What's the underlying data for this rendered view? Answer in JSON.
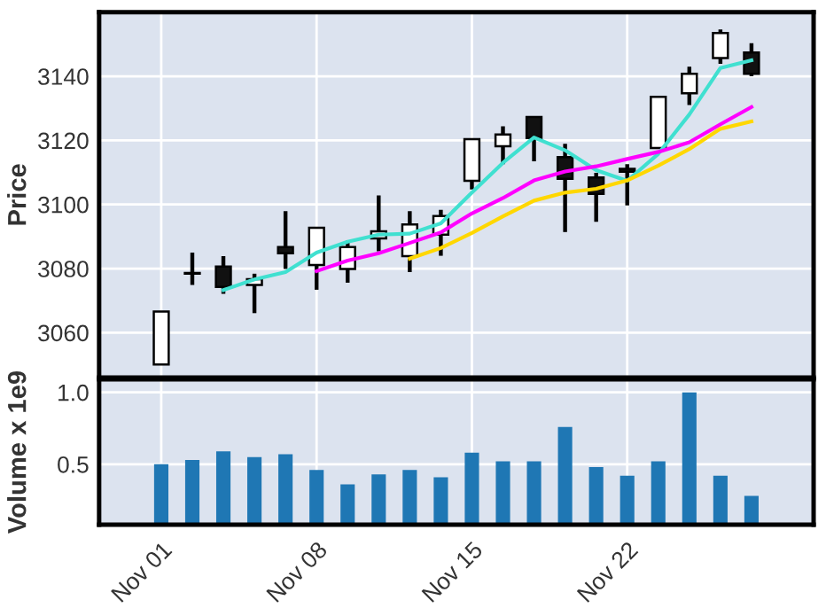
{
  "chart_data": [
    {
      "type": "candlestick",
      "ylabel": "Price",
      "categories": [
        null,
        null,
        null,
        null,
        null,
        null,
        null,
        null,
        null,
        null,
        null,
        null,
        null,
        null,
        null,
        null,
        null,
        null,
        null,
        null
      ],
      "ohlc": [
        [
          3050.1,
          3066.6,
          3050.1,
          3066.6
        ],
        [
          3078.6,
          3085.0,
          3074.9,
          3078.4
        ],
        [
          3080.6,
          3083.9,
          3072.1,
          3074.3
        ],
        [
          3074.9,
          3078.4,
          3066.1,
          3076.7
        ],
        [
          3086.7,
          3097.9,
          3079.9,
          3084.8
        ],
        [
          3081.1,
          3092.7,
          3073.4,
          3092.7
        ],
        [
          3079.9,
          3088.7,
          3075.6,
          3086.7
        ],
        [
          3089.4,
          3102.8,
          3085.4,
          3091.6
        ],
        [
          3083.9,
          3097.9,
          3078.9,
          3093.8
        ],
        [
          3090.6,
          3098.3,
          3084.0,
          3096.4
        ],
        [
          3107.4,
          3120.4,
          3104.7,
          3120.4
        ],
        [
          3118.2,
          3124.4,
          3112.6,
          3121.8
        ],
        [
          3127.3,
          3127.3,
          3113.5,
          3120.7
        ],
        [
          3114.8,
          3118.9,
          3091.4,
          3108.0
        ],
        [
          3108.4,
          3109.9,
          3094.6,
          3103.3
        ],
        [
          3111.1,
          3112.6,
          3099.7,
          3110.2
        ],
        [
          3117.6,
          3133.6,
          3117.6,
          3133.6
        ],
        [
          3134.7,
          3143.0,
          3131.0,
          3140.8
        ],
        [
          3145.7,
          3154.6,
          3143.9,
          3153.5
        ],
        [
          3147.4,
          3150.3,
          3140.0,
          3140.8
        ]
      ],
      "series": [
        {
          "type": "line",
          "color": "#40e0d0",
          "values": [
            null,
            null,
            3073.3,
            3076.6,
            3078.9,
            3085.0,
            3088.4,
            3090.6,
            3090.9,
            3094.1,
            3103.7,
            3113.0,
            3120.9,
            3116.9,
            3110.7,
            3107.4,
            3115.8,
            3128.1,
            3142.6,
            3145.0
          ]
        },
        {
          "type": "line",
          "color": "#ff00ff",
          "values": [
            null,
            null,
            null,
            null,
            null,
            3079.2,
            3082.5,
            3084.8,
            3088.0,
            3091.3,
            3097.2,
            3102.0,
            3107.5,
            3110.3,
            3111.9,
            3114.2,
            3116.4,
            3119.4,
            3125.0,
            3130.4
          ]
        },
        {
          "type": "line",
          "color": "#ffd700",
          "values": [
            null,
            null,
            null,
            null,
            null,
            null,
            null,
            null,
            3083.1,
            3086.4,
            3091.1,
            3096.3,
            3101.2,
            3103.7,
            3104.9,
            3107.5,
            3112.1,
            3117.3,
            3123.6,
            3125.9
          ]
        }
      ],
      "ylim": [
        3046,
        3160
      ],
      "yticks": [
        3060,
        3080,
        3100,
        3120,
        3140
      ],
      "grid": true,
      "tick_labels": "y"
    },
    {
      "type": "bar",
      "ylabel": "Volume x 1e9",
      "categories": [
        "Nov 01",
        null,
        null,
        null,
        null,
        "Nov 08",
        null,
        null,
        null,
        null,
        "Nov 15",
        null,
        null,
        null,
        null,
        "Nov 22",
        null,
        null,
        null,
        null
      ],
      "values": [
        0.5,
        0.53,
        0.59,
        0.55,
        0.57,
        0.46,
        0.36,
        0.43,
        0.46,
        0.41,
        0.58,
        0.52,
        0.52,
        0.76,
        0.48,
        0.42,
        0.52,
        1.0,
        0.42,
        0.28
      ],
      "color": "#1f77b4",
      "ylim": [
        0.08,
        1.09
      ],
      "yticks": [
        {
          "value": 0.5,
          "label": "0.5"
        },
        {
          "value": 1.0,
          "label": "1.0"
        }
      ],
      "grid": true
    }
  ]
}
